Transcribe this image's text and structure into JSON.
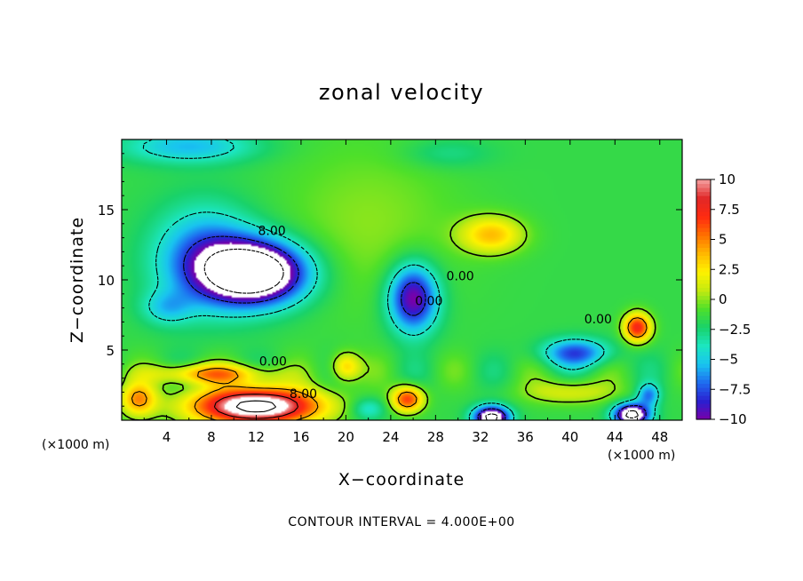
{
  "chart_data": {
    "type": "heatmap",
    "title": "zonal velocity",
    "xlabel": "X−coordinate",
    "ylabel": "Z−coordinate",
    "x_unit": "(×1000 m)",
    "xlim": [
      0,
      50
    ],
    "ylim": [
      0,
      20
    ],
    "x_ticks": [
      4,
      8,
      12,
      16,
      20,
      24,
      28,
      32,
      36,
      40,
      44,
      48
    ],
    "y_ticks": [
      5,
      10,
      15
    ],
    "colorbar": {
      "range": [
        -10,
        10
      ],
      "ticks": [
        "10",
        "7.5",
        "5",
        "2.5",
        "0",
        "−2.5",
        "−5",
        "−7.5",
        "−10"
      ],
      "colors": [
        "#7a00a8",
        "#2a1fd0",
        "#1e6cf0",
        "#19c4f0",
        "#1ce6c0",
        "#19d26a",
        "#4ee02a",
        "#c4ea10",
        "#fff200",
        "#ffb800",
        "#ff7000",
        "#ff2a10",
        "#e02828",
        "#f5a0a0"
      ]
    },
    "contour_labels": [
      {
        "text": "8.00",
        "x": 13.4,
        "y": 13.5
      },
      {
        "text": "0.00",
        "x": 30.2,
        "y": 10.3
      },
      {
        "text": "0.00",
        "x": 27.4,
        "y": 8.5
      },
      {
        "text": "0.00",
        "x": 42.5,
        "y": 7.2
      },
      {
        "text": "0.00",
        "x": 13.5,
        "y": 4.2
      },
      {
        "text": "8.00",
        "x": 16.2,
        "y": 1.9
      }
    ],
    "contour_interval": "4.000E+00",
    "footer": "CONTOUR INTERVAL = 4.000E+00",
    "field_features": [
      {
        "sign": "neg",
        "x": 12,
        "y": 10.5,
        "sx": 4.5,
        "sy": 2.2,
        "amp": -14
      },
      {
        "sign": "neg",
        "x": 7.5,
        "y": 11.5,
        "sx": 4.5,
        "sy": 3.5,
        "amp": -6
      },
      {
        "sign": "neg",
        "x": 4,
        "y": 8,
        "sx": 2.2,
        "sy": 1.2,
        "amp": -3
      },
      {
        "sign": "neg",
        "x": 26,
        "y": 8.7,
        "sx": 2.2,
        "sy": 2.4,
        "amp": -9
      },
      {
        "sign": "neg",
        "x": 6,
        "y": 19.5,
        "sx": 6,
        "sy": 1.2,
        "amp": -4
      },
      {
        "sign": "neg",
        "x": 29,
        "y": 19,
        "sx": 4,
        "sy": 1.1,
        "amp": -1.5
      },
      {
        "sign": "pos",
        "x": 12,
        "y": 1,
        "sx": 5.5,
        "sy": 1.3,
        "amp": 15
      },
      {
        "sign": "pos",
        "x": 8,
        "y": 3.3,
        "sx": 5,
        "sy": 0.7,
        "amp": 6
      },
      {
        "sign": "pos",
        "x": 1.5,
        "y": 1.5,
        "sx": 1.6,
        "sy": 1.2,
        "amp": 6
      },
      {
        "sign": "pos",
        "x": 25.5,
        "y": 1.5,
        "sx": 1.4,
        "sy": 0.9,
        "amp": 8
      },
      {
        "sign": "pos",
        "x": 20,
        "y": 3.8,
        "sx": 1.3,
        "sy": 1,
        "amp": 5
      },
      {
        "sign": "pos",
        "x": 33,
        "y": 13.2,
        "sx": 2.8,
        "sy": 1.3,
        "amp": 5
      },
      {
        "sign": "pos",
        "x": 46,
        "y": 6.6,
        "sx": 1.2,
        "sy": 1,
        "amp": 9
      },
      {
        "sign": "neg",
        "x": 40.5,
        "y": 4.8,
        "sx": 3,
        "sy": 1,
        "amp": -6
      },
      {
        "sign": "neg",
        "x": 33,
        "y": 0.2,
        "sx": 1.6,
        "sy": 0.8,
        "amp": -12
      },
      {
        "sign": "neg",
        "x": 45.5,
        "y": 0.4,
        "sx": 1.6,
        "sy": 0.8,
        "amp": -12
      },
      {
        "sign": "neg",
        "x": 47,
        "y": 1.8,
        "sx": 1,
        "sy": 0.8,
        "amp": -5
      },
      {
        "sign": "neg",
        "x": 22,
        "y": 0.8,
        "sx": 1.5,
        "sy": 0.8,
        "amp": -3
      },
      {
        "sign": "pos",
        "x": 40,
        "y": 2,
        "sx": 4,
        "sy": 0.9,
        "amp": 3
      },
      {
        "sign": "pos",
        "x": 22,
        "y": 14,
        "sx": 8,
        "sy": 6,
        "amp": 1.5
      }
    ],
    "field_base": -1.5
  }
}
